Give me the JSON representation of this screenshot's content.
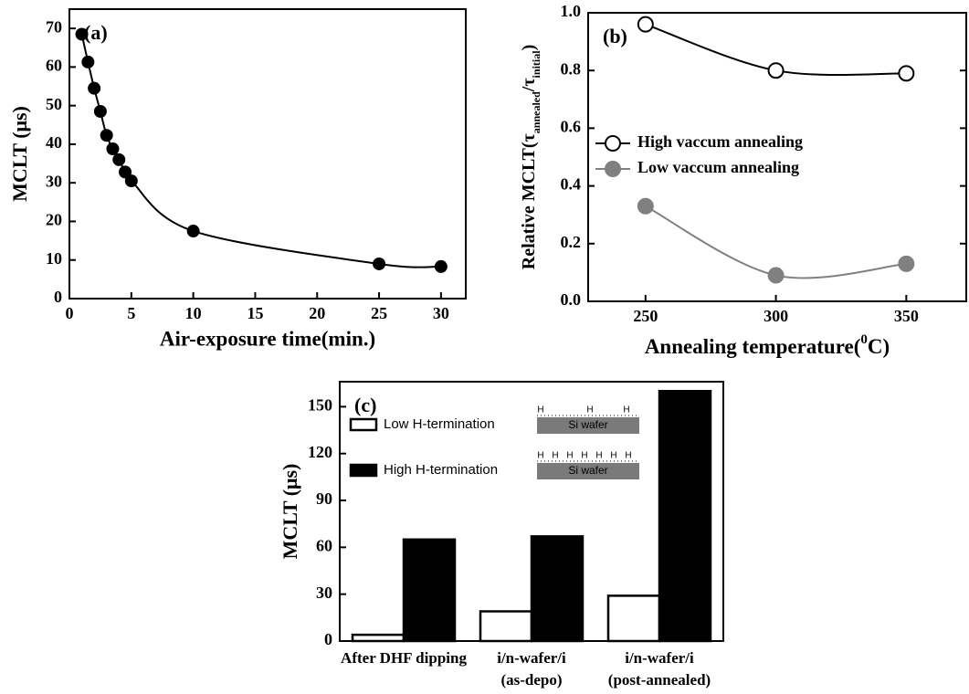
{
  "chart_data": [
    {
      "type": "line",
      "panel_label": "(a)",
      "x_label": "Air-exposure time(min.)",
      "y_label": "MCLT (μs)",
      "x": [
        1,
        1.5,
        2,
        2.5,
        3,
        3.5,
        4,
        4.5,
        5,
        10,
        25,
        30
      ],
      "series": [
        {
          "color": "#000000",
          "marker_fill": "#000000",
          "values": [
            68.5,
            61.3,
            54.5,
            48.5,
            42.3,
            38.8,
            36,
            32.8,
            30.5,
            17.5,
            9,
            8.3
          ]
        }
      ],
      "xlim": [
        0,
        32
      ],
      "xticks": [
        0,
        5,
        10,
        15,
        20,
        25,
        30
      ],
      "ylim": [
        0,
        75
      ],
      "yticks": [
        0,
        10,
        20,
        30,
        40,
        50,
        60,
        70
      ]
    },
    {
      "type": "line",
      "panel_label": "(b)",
      "x_label": {
        "before": "Annealing temperature(",
        "sup": "0",
        "after": "C)"
      },
      "y_label": {
        "before": "Relative  MCLT(τ",
        "sub1": "annealed",
        "mid": "/τ",
        "sub2": "initial",
        "after": ")"
      },
      "x": [
        250,
        300,
        350
      ],
      "series": [
        {
          "name": "High vaccum annealing",
          "color": "#000000",
          "marker_fill": "#ffffff",
          "values": [
            0.96,
            0.8,
            0.79
          ]
        },
        {
          "name": "Low vaccum annealing",
          "color": "#808080",
          "marker_fill": "#808080",
          "values": [
            0.33,
            0.09,
            0.13
          ]
        }
      ],
      "xlim": [
        228,
        373
      ],
      "xticks": [
        250,
        300,
        350
      ],
      "ylim": [
        0,
        1
      ],
      "yticks": [
        {
          "value": 0,
          "label": "0.0"
        },
        0.2,
        0.4,
        0.6,
        0.8,
        {
          "value": 1,
          "label": "1.0"
        }
      ],
      "legend": "left"
    },
    {
      "type": "bar",
      "panel_label": "(c)",
      "y_label": "MCLT (μs)",
      "categories": [
        [
          "After DHF dipping"
        ],
        [
          "i/n-wafer/i",
          "(as-depo)"
        ],
        [
          "i/n-wafer/i",
          "(post-annealed)"
        ]
      ],
      "series": [
        {
          "name": "Low H-termination",
          "color": "#ffffff",
          "values": [
            4,
            19,
            29
          ]
        },
        {
          "name": "High H-termination",
          "color": "#000000",
          "values": [
            65,
            67,
            160
          ]
        }
      ],
      "ylim": [
        0,
        166
      ],
      "yticks": [
        0,
        30,
        60,
        90,
        120,
        150
      ],
      "inset_text": "Si wafer",
      "h_label": "H"
    }
  ]
}
